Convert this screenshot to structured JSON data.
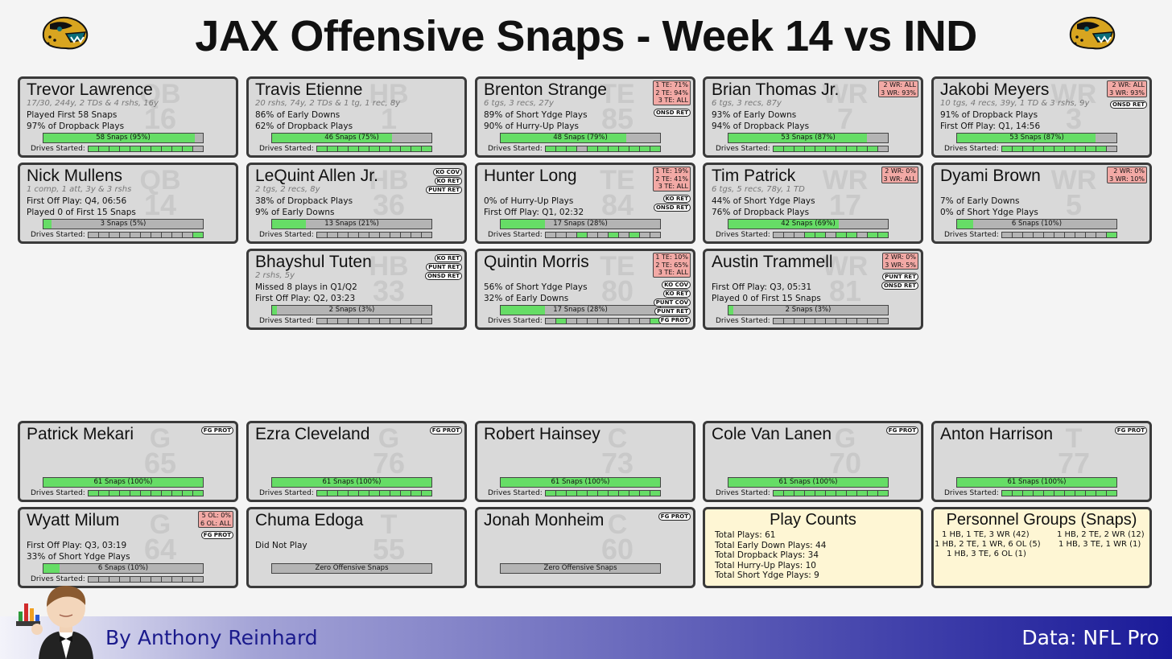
{
  "title": "JAX Offensive Snaps - Week 14 vs IND",
  "drives_label": "Drives Started:",
  "players": [
    {
      "name": "Trevor Lawrence",
      "pos": "QB",
      "num": "16",
      "sub": "17/30, 244y, 2 TDs & 4 rshs, 16y",
      "line1": "Played First 58 Snaps",
      "line2": "97% of Dropback Plays",
      "bar_text": "58 Snaps (95%)",
      "snap_pct": 95,
      "drives": [
        1,
        1,
        1,
        1,
        1,
        1,
        1,
        1,
        1,
        1,
        0
      ],
      "rbox": [],
      "tags": []
    },
    {
      "name": "Travis Etienne",
      "pos": "HB",
      "num": "1",
      "sub": "20 rshs, 74y, 2 TDs & 1 tg, 1 rec, 8y",
      "line1": "86% of Early Downs",
      "line2": "62% of Dropback Plays",
      "bar_text": "46 Snaps (75%)",
      "snap_pct": 75,
      "drives": [
        1,
        1,
        1,
        1,
        1,
        1,
        1,
        1,
        1,
        1,
        1
      ],
      "rbox": [],
      "tags": []
    },
    {
      "name": "Brenton Strange",
      "pos": "TE",
      "num": "85",
      "sub": "6 tgs, 3 recs, 27y",
      "line1": "89% of Short Ydge Plays",
      "line2": "90% of Hurry-Up Plays",
      "bar_text": "48 Snaps (79%)",
      "snap_pct": 79,
      "drives": [
        1,
        1,
        1,
        0,
        1,
        1,
        1,
        1,
        1,
        1,
        1
      ],
      "rbox": [
        "1 TE: 71%",
        "2 TE: 94%",
        "3 TE: ALL"
      ],
      "tags": [
        "ONSD RET"
      ]
    },
    {
      "name": "Brian Thomas Jr.",
      "pos": "WR",
      "num": "7",
      "sub": "6 tgs, 3 recs, 87y",
      "line1": "93% of Early Downs",
      "line2": "94% of Dropback Plays",
      "bar_text": "53 Snaps (87%)",
      "snap_pct": 87,
      "drives": [
        1,
        1,
        1,
        1,
        1,
        1,
        1,
        1,
        1,
        1,
        0
      ],
      "rbox": [
        "2 WR: ALL",
        "3 WR: 93%"
      ],
      "tags": []
    },
    {
      "name": "Jakobi Meyers",
      "pos": "WR",
      "num": "3",
      "sub": "10 tgs, 4 recs, 39y, 1 TD & 3 rshs, 9y",
      "line1": "91% of Dropback Plays",
      "line2": "First Off Play: Q1, 14:56",
      "bar_text": "53 Snaps (87%)",
      "snap_pct": 87,
      "drives": [
        1,
        1,
        1,
        1,
        1,
        1,
        1,
        1,
        1,
        1,
        0
      ],
      "rbox": [
        "2 WR: ALL",
        "3 WR: 93%"
      ],
      "tags": [
        "ONSD RET"
      ]
    },
    {
      "name": "Nick Mullens",
      "pos": "QB",
      "num": "14",
      "sub": "1 comp, 1 att, 3y & 3 rshs",
      "line1": "First Off Play: Q4, 06:56",
      "line2": "Played 0 of First 15 Snaps",
      "bar_text": "3 Snaps (5%)",
      "snap_pct": 5,
      "drives": [
        0,
        0,
        0,
        0,
        0,
        0,
        0,
        0,
        0,
        0,
        1
      ],
      "rbox": [],
      "tags": []
    },
    {
      "name": "LeQuint Allen Jr.",
      "pos": "HB",
      "num": "36",
      "sub": "2 tgs, 2 recs, 8y",
      "line1": "38% of Dropback Plays",
      "line2": "9% of Early Downs",
      "bar_text": "13 Snaps (21%)",
      "snap_pct": 21,
      "drives": [
        0,
        0,
        0,
        0,
        0,
        0,
        0,
        0,
        0,
        0,
        0
      ],
      "rbox": [],
      "tags": [
        "KO COV",
        "KO RET",
        "PUNT RET"
      ]
    },
    {
      "name": "Hunter Long",
      "pos": "TE",
      "num": "84",
      "sub": "",
      "line1": "0% of Hurry-Up Plays",
      "line2": "First Off Play: Q1, 02:32",
      "bar_text": "17 Snaps (28%)",
      "snap_pct": 28,
      "drives": [
        0,
        0,
        0,
        1,
        0,
        0,
        1,
        0,
        1,
        0,
        0
      ],
      "rbox": [
        "1 TE: 19%",
        "2 TE: 41%",
        "3 TE: ALL"
      ],
      "tags": [
        "KO RET",
        "ONSD RET"
      ]
    },
    {
      "name": "Tim Patrick",
      "pos": "WR",
      "num": "17",
      "sub": "6 tgs, 5 recs, 78y, 1 TD",
      "line1": "44% of Short Ydge Plays",
      "line2": "76% of Dropback Plays",
      "bar_text": "42 Snaps (69%)",
      "snap_pct": 69,
      "drives": [
        0,
        0,
        0,
        1,
        1,
        0,
        1,
        1,
        0,
        1,
        1
      ],
      "rbox": [
        "2 WR: 0%",
        "3 WR: ALL"
      ],
      "tags": []
    },
    {
      "name": "Dyami Brown",
      "pos": "WR",
      "num": "5",
      "sub": "",
      "line1": "7% of Early Downs",
      "line2": "0% of Short Ydge Plays",
      "bar_text": "6 Snaps (10%)",
      "snap_pct": 10,
      "drives": [
        0,
        0,
        0,
        0,
        0,
        0,
        0,
        0,
        0,
        0,
        1
      ],
      "rbox": [
        "2 WR: 0%",
        "3 WR: 10%"
      ],
      "tags": []
    },
    {
      "name": "Bhayshul Tuten",
      "pos": "HB",
      "num": "33",
      "sub": "2 rshs, 5y",
      "line1": "Missed 8 plays in Q1/Q2",
      "line2": "First Off Play: Q2, 03:23",
      "bar_text": "2 Snaps (3%)",
      "snap_pct": 3,
      "drives": [
        0,
        0,
        0,
        0,
        0,
        0,
        0,
        0,
        0,
        0,
        0
      ],
      "rbox": [],
      "tags": [
        "KO RET",
        "PUNT RET",
        "ONSD RET"
      ]
    },
    {
      "name": "Quintin Morris",
      "pos": "TE",
      "num": "80",
      "sub": "",
      "line1": "56% of Short Ydge Plays",
      "line2": "32% of Early Downs",
      "bar_text": "17 Snaps (28%)",
      "snap_pct": 28,
      "drives": [
        0,
        1,
        0,
        0,
        0,
        0,
        0,
        0,
        0,
        0,
        1
      ],
      "rbox": [
        "1 TE: 10%",
        "2 TE: 65%",
        "3 TE: ALL"
      ],
      "tags": [
        "KO COV",
        "KO RET",
        "PUNT COV",
        "PUNT RET",
        "FG PROT"
      ]
    },
    {
      "name": "Austin Trammell",
      "pos": "WR",
      "num": "81",
      "sub": "",
      "line1": "First Off Play: Q3, 05:31",
      "line2": "Played 0 of First 15 Snaps",
      "bar_text": "2 Snaps (3%)",
      "snap_pct": 3,
      "drives": [
        0,
        0,
        0,
        0,
        0,
        0,
        0,
        0,
        0,
        0,
        0
      ],
      "rbox": [
        "2 WR: 0%",
        "3 WR: 5%"
      ],
      "tags": [
        "PUNT RET",
        "ONSD RET"
      ]
    },
    {
      "name": "Patrick Mekari",
      "pos": "G",
      "num": "65",
      "sub": "",
      "line1": "",
      "line2": "",
      "bar_text": "61 Snaps (100%)",
      "snap_pct": 100,
      "drives": [
        1,
        1,
        1,
        1,
        1,
        1,
        1,
        1,
        1,
        1,
        1
      ],
      "rbox": [],
      "tags": [
        "FG PROT"
      ]
    },
    {
      "name": "Ezra Cleveland",
      "pos": "G",
      "num": "76",
      "sub": "",
      "line1": "",
      "line2": "",
      "bar_text": "61 Snaps (100%)",
      "snap_pct": 100,
      "drives": [
        1,
        1,
        1,
        1,
        1,
        1,
        1,
        1,
        1,
        1,
        1
      ],
      "rbox": [],
      "tags": [
        "FG PROT"
      ]
    },
    {
      "name": "Robert Hainsey",
      "pos": "C",
      "num": "73",
      "sub": "",
      "line1": "",
      "line2": "",
      "bar_text": "61 Snaps (100%)",
      "snap_pct": 100,
      "drives": [
        1,
        1,
        1,
        1,
        1,
        1,
        1,
        1,
        1,
        1,
        1
      ],
      "rbox": [],
      "tags": []
    },
    {
      "name": "Cole Van Lanen",
      "pos": "G",
      "num": "70",
      "sub": "",
      "line1": "",
      "line2": "",
      "bar_text": "61 Snaps (100%)",
      "snap_pct": 100,
      "drives": [
        1,
        1,
        1,
        1,
        1,
        1,
        1,
        1,
        1,
        1,
        1
      ],
      "rbox": [],
      "tags": [
        "FG PROT"
      ]
    },
    {
      "name": "Anton Harrison",
      "pos": "T",
      "num": "77",
      "sub": "",
      "line1": "",
      "line2": "",
      "bar_text": "61 Snaps (100%)",
      "snap_pct": 100,
      "drives": [
        1,
        1,
        1,
        1,
        1,
        1,
        1,
        1,
        1,
        1,
        1
      ],
      "rbox": [],
      "tags": [
        "FG PROT"
      ]
    },
    {
      "name": "Wyatt Milum",
      "pos": "G",
      "num": "64",
      "sub": "",
      "line1": "First Off Play: Q3, 03:19",
      "line2": "33% of Short Ydge Plays",
      "bar_text": "6 Snaps (10%)",
      "snap_pct": 10,
      "drives": [
        0,
        0,
        0,
        0,
        0,
        0,
        0,
        0,
        0,
        0,
        0
      ],
      "rbox": [
        "5 OL: 0%",
        "6 OL: ALL"
      ],
      "tags": [
        "FG PROT"
      ]
    },
    {
      "name": "Chuma Edoga",
      "pos": "T",
      "num": "55",
      "sub": "",
      "line1": "Did Not Play",
      "line2": "",
      "bar_text": "Zero Offensive Snaps",
      "snap_pct": 0,
      "drives": [],
      "rbox": [],
      "tags": []
    },
    {
      "name": "Jonah Monheim",
      "pos": "C",
      "num": "60",
      "sub": "",
      "line1": "",
      "line2": "",
      "bar_text": "Zero Offensive Snaps",
      "snap_pct": 0,
      "drives": [],
      "rbox": [],
      "tags": [
        "FG PROT"
      ]
    }
  ],
  "play_counts": {
    "title": "Play Counts",
    "lines": [
      "Total Plays: 61",
      "Total Early Down Plays: 44",
      "Total Dropback Plays: 34",
      "Total Hurry-Up Plays: 10",
      "Total Short Ydge Plays: 9"
    ]
  },
  "personnel": {
    "title": "Personnel Groups (Snaps)",
    "entries": [
      "1 HB, 1 TE, 3 WR (42)",
      "1 HB, 2 TE, 2 WR (12)",
      "1 HB, 2 TE, 1 WR, 6 OL (5)",
      "1 HB, 3 TE, 1 WR (1)",
      "1 HB, 3 TE, 6 OL (1)"
    ]
  },
  "footer": {
    "byline": "By Anthony Reinhard",
    "source": "Data: NFL Pro"
  },
  "colors": {
    "fill_green": "#66dd66",
    "role_box": "#f2a9a5",
    "card_bg": "#d9d9d9",
    "summary_bg": "#fef6d4",
    "footer_dark": "#1a1a99"
  },
  "icons": {
    "team_logo": "jaguar-logo",
    "author_avatar": "butler-avatar",
    "chart_icon": "bar-chart-icon"
  }
}
